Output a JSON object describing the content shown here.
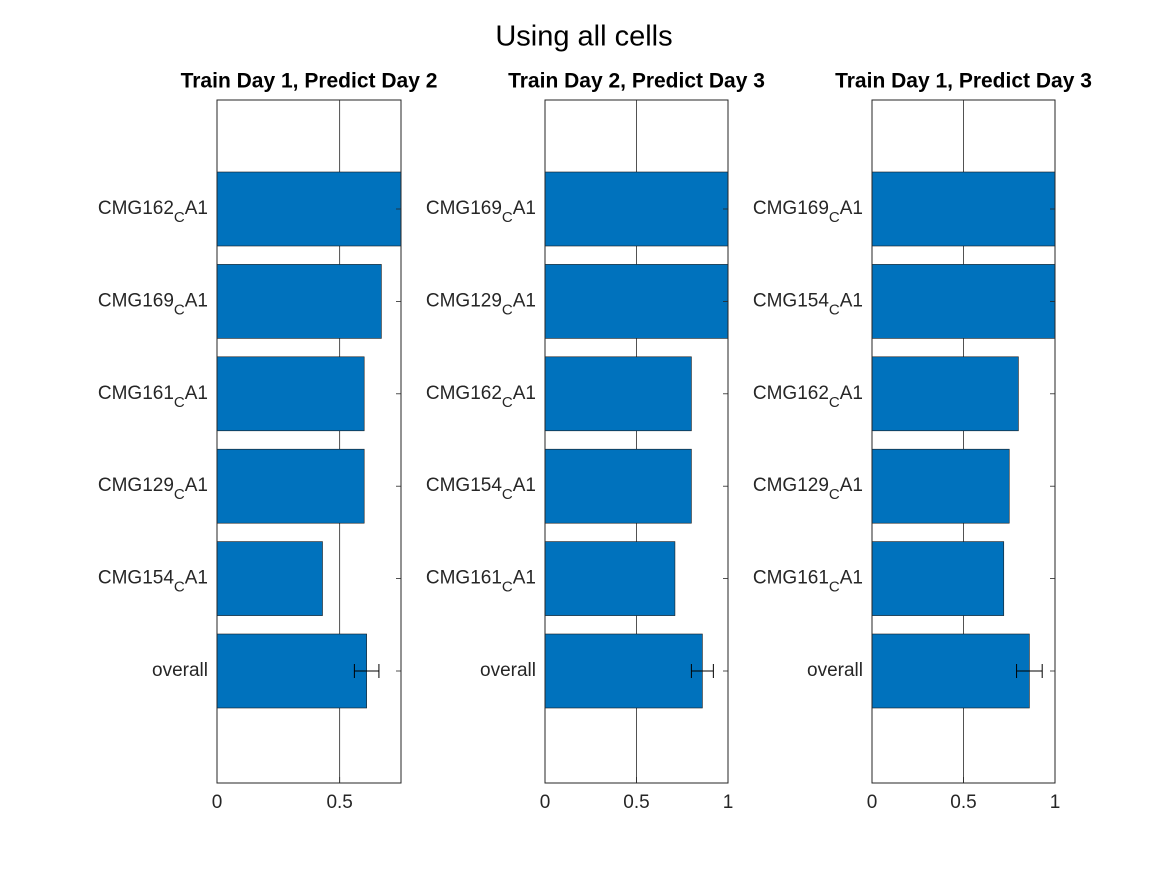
{
  "title": "Using all cells",
  "chart_data": [
    {
      "type": "bar",
      "orientation": "horizontal",
      "title": "Train Day 1, Predict Day 2",
      "categories": [
        "CMG162CA1",
        "CMG169CA1",
        "CMG161CA1",
        "CMG129CA1",
        "CMG154CA1",
        "overall"
      ],
      "values": [
        0.75,
        0.67,
        0.6,
        0.6,
        0.43,
        0.61
      ],
      "errors": [
        null,
        null,
        null,
        null,
        null,
        0.05
      ],
      "color": "#0072bd",
      "xlim": [
        0,
        0.75
      ],
      "xticks": [
        0,
        0.5
      ],
      "grid": true
    },
    {
      "type": "bar",
      "orientation": "horizontal",
      "title": "Train Day 2, Predict Day 3",
      "categories": [
        "CMG169CA1",
        "CMG129CA1",
        "CMG162CA1",
        "CMG154CA1",
        "CMG161CA1",
        "overall"
      ],
      "values": [
        1,
        1,
        0.8,
        0.8,
        0.71,
        0.86
      ],
      "errors": [
        null,
        null,
        null,
        null,
        null,
        0.06
      ],
      "color": "#0072bd",
      "xlim": [
        0,
        1
      ],
      "xticks": [
        0,
        0.5,
        1
      ],
      "grid": true
    },
    {
      "type": "bar",
      "orientation": "horizontal",
      "title": "Train Day 1, Predict Day 3",
      "categories": [
        "CMG169CA1",
        "CMG154CA1",
        "CMG162CA1",
        "CMG129CA1",
        "CMG161CA1",
        "overall"
      ],
      "values": [
        1,
        1,
        0.8,
        0.75,
        0.72,
        0.86
      ],
      "errors": [
        null,
        null,
        null,
        null,
        null,
        0.07
      ],
      "color": "#0072bd",
      "xlim": [
        0,
        1
      ],
      "xticks": [
        0,
        0.5,
        1
      ],
      "grid": true
    }
  ]
}
